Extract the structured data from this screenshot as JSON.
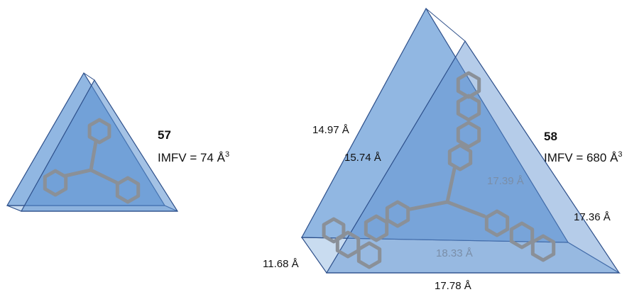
{
  "compounds": [
    {
      "number": "57",
      "imfv": "IMFV = 74 Å",
      "imfv_superscript": "3"
    },
    {
      "number": "58",
      "imfv": "IMFV = 680 Å",
      "imfv_superscript": "3",
      "dimensions": [
        "14.97 Å",
        "15.74 Å",
        "17.39 Å",
        "17.36 Å",
        "18.33 Å",
        "11.68 Å",
        "17.78 Å"
      ]
    }
  ]
}
